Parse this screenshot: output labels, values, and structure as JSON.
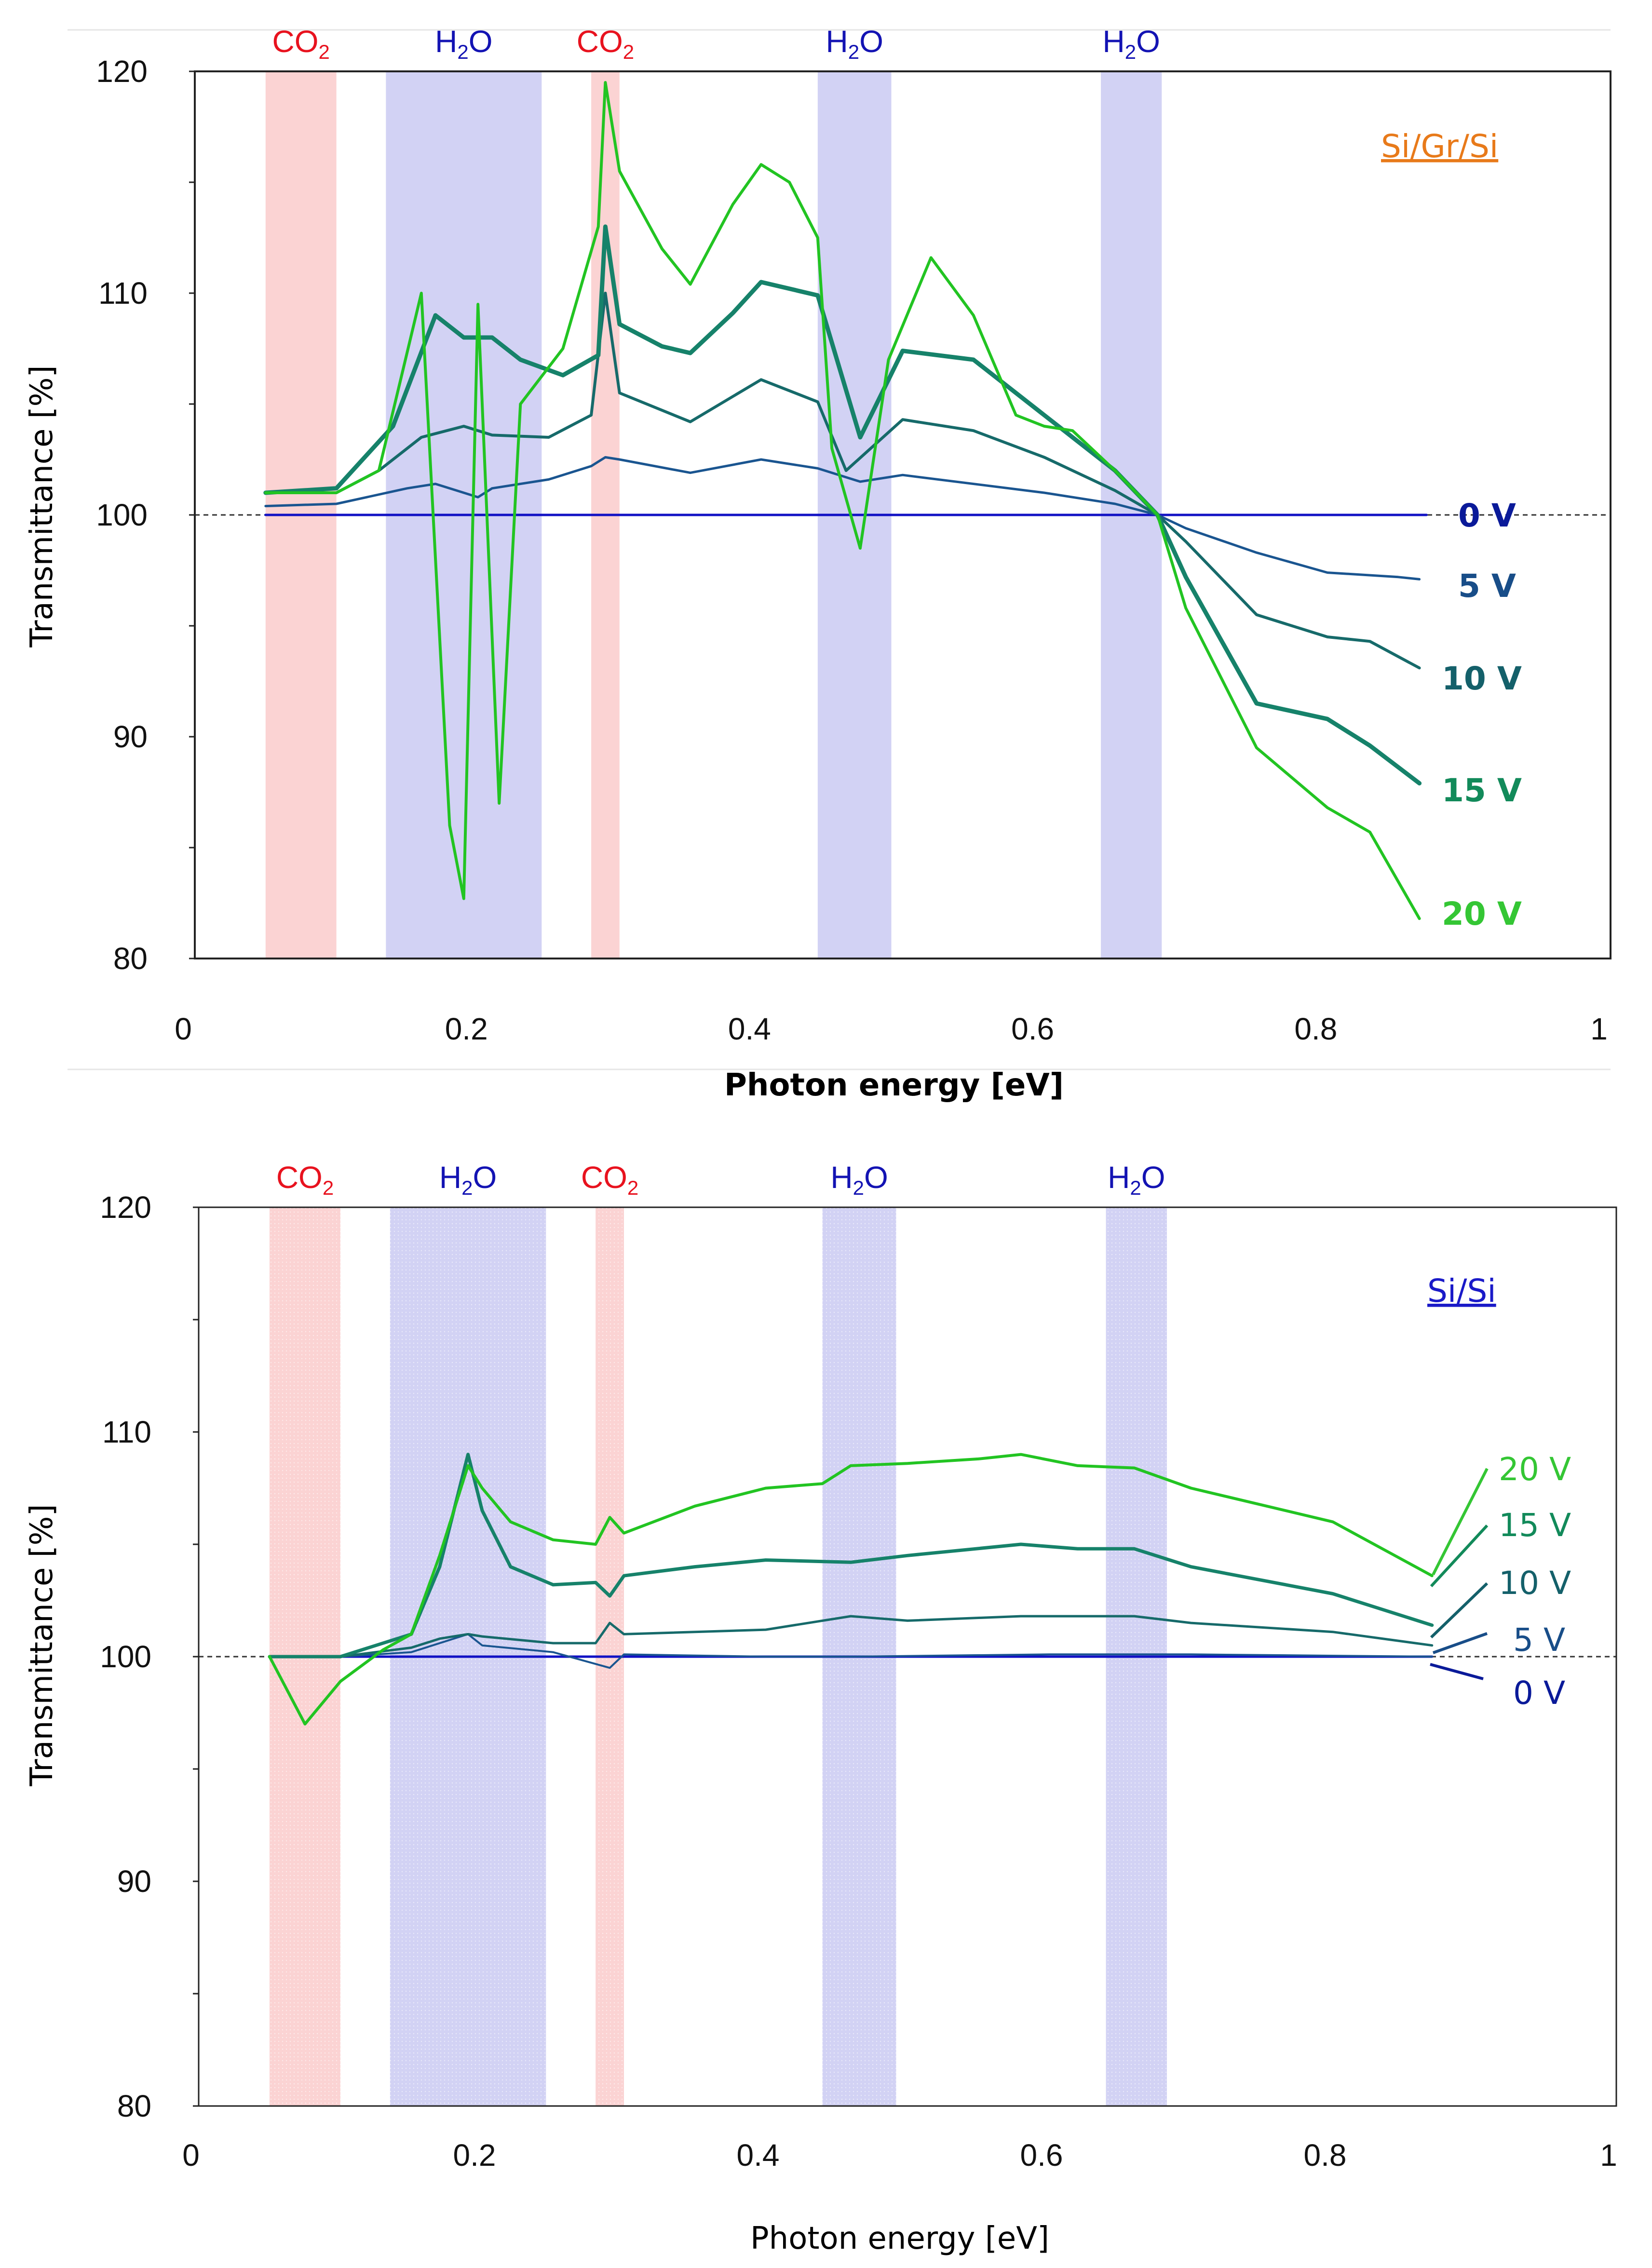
{
  "colors": {
    "co2_band": "#fbd3d3",
    "h2o_band": "#d2d2f4",
    "co2_text": "#e8121e",
    "h2o_text": "#1313b3",
    "v0": "#1111c4",
    "v5": "#1a5590",
    "v10": "#166a6a",
    "v15": "#16826a",
    "v20": "#22c422",
    "label_v0": "#0a1a99",
    "label_v5": "#184d88",
    "label_v10": "#14606a",
    "label_v15": "#128a5a",
    "label_v20": "#34c634",
    "si_gr_si": "#e87a1a",
    "si_si": "#1a1ac8"
  },
  "chart_data": [
    {
      "type": "line",
      "sample_label": "Si/Gr/Si",
      "xlabel": "Photon energy [eV]",
      "ylabel": "Transmittance [%]",
      "xlim": [
        0,
        1
      ],
      "ylim": [
        80,
        120
      ],
      "x_ticks": [
        "0",
        "0.2",
        "0.4",
        "0.6",
        "0.8",
        "1"
      ],
      "y_ticks": [
        "80",
        "90",
        "100",
        "110",
        "120"
      ],
      "reference_line": 100,
      "bands": [
        {
          "label": "CO",
          "sub": "2",
          "type": "co2",
          "range": [
            0.05,
            0.1
          ]
        },
        {
          "label": "H",
          "sub": "2",
          "tail": "O",
          "type": "h2o",
          "range": [
            0.135,
            0.245
          ]
        },
        {
          "label": "CO",
          "sub": "2",
          "type": "co2",
          "range": [
            0.28,
            0.3
          ]
        },
        {
          "label": "H",
          "sub": "2",
          "tail": "O",
          "type": "h2o",
          "range": [
            0.44,
            0.492
          ]
        },
        {
          "label": "H",
          "sub": "2",
          "tail": "O",
          "type": "h2o",
          "range": [
            0.64,
            0.683
          ]
        }
      ],
      "series": [
        {
          "name": "0 V",
          "key": "v0",
          "width": 5,
          "points": [
            [
              0.05,
              100
            ],
            [
              0.87,
              100
            ]
          ]
        },
        {
          "name": "5 V",
          "key": "v5",
          "width": 5,
          "points": [
            [
              0.05,
              100.4
            ],
            [
              0.1,
              100.5
            ],
            [
              0.15,
              101.2
            ],
            [
              0.17,
              101.4
            ],
            [
              0.19,
              101.0
            ],
            [
              0.2,
              100.8
            ],
            [
              0.21,
              101.2
            ],
            [
              0.25,
              101.6
            ],
            [
              0.28,
              102.2
            ],
            [
              0.29,
              102.6
            ],
            [
              0.3,
              102.5
            ],
            [
              0.35,
              101.9
            ],
            [
              0.4,
              102.5
            ],
            [
              0.44,
              102.1
            ],
            [
              0.47,
              101.5
            ],
            [
              0.5,
              101.8
            ],
            [
              0.6,
              101.0
            ],
            [
              0.65,
              100.5
            ],
            [
              0.68,
              100.0
            ],
            [
              0.7,
              99.4
            ],
            [
              0.75,
              98.3
            ],
            [
              0.8,
              97.4
            ],
            [
              0.85,
              97.2
            ],
            [
              0.865,
              97.1
            ]
          ]
        },
        {
          "name": "10 V",
          "key": "v10",
          "width": 6,
          "points": [
            [
              0.05,
              101.0
            ],
            [
              0.1,
              101.0
            ],
            [
              0.13,
              102.0
            ],
            [
              0.16,
              103.5
            ],
            [
              0.19,
              104.0
            ],
            [
              0.21,
              103.6
            ],
            [
              0.25,
              103.5
            ],
            [
              0.28,
              104.5
            ],
            [
              0.29,
              110.0
            ],
            [
              0.3,
              105.5
            ],
            [
              0.35,
              104.2
            ],
            [
              0.4,
              106.1
            ],
            [
              0.44,
              105.1
            ],
            [
              0.46,
              102.0
            ],
            [
              0.5,
              104.3
            ],
            [
              0.55,
              103.8
            ],
            [
              0.6,
              102.6
            ],
            [
              0.65,
              101.1
            ],
            [
              0.68,
              100.0
            ],
            [
              0.7,
              98.8
            ],
            [
              0.75,
              95.5
            ],
            [
              0.8,
              94.5
            ],
            [
              0.83,
              94.3
            ],
            [
              0.865,
              93.1
            ]
          ]
        },
        {
          "name": "15 V",
          "key": "v15",
          "width": 9,
          "points": [
            [
              0.05,
              101.0
            ],
            [
              0.1,
              101.2
            ],
            [
              0.14,
              104.0
            ],
            [
              0.17,
              109.0
            ],
            [
              0.19,
              108.0
            ],
            [
              0.21,
              108.0
            ],
            [
              0.23,
              107.0
            ],
            [
              0.26,
              106.3
            ],
            [
              0.285,
              107.2
            ],
            [
              0.29,
              113.0
            ],
            [
              0.3,
              108.6
            ],
            [
              0.33,
              107.6
            ],
            [
              0.35,
              107.3
            ],
            [
              0.38,
              109.1
            ],
            [
              0.4,
              110.5
            ],
            [
              0.44,
              109.9
            ],
            [
              0.47,
              103.5
            ],
            [
              0.5,
              107.4
            ],
            [
              0.55,
              107.0
            ],
            [
              0.6,
              104.5
            ],
            [
              0.65,
              102.0
            ],
            [
              0.68,
              100.0
            ],
            [
              0.7,
              97.2
            ],
            [
              0.75,
              91.5
            ],
            [
              0.8,
              90.8
            ],
            [
              0.83,
              89.6
            ],
            [
              0.865,
              87.9
            ]
          ]
        },
        {
          "name": "20 V",
          "key": "v20",
          "width": 6,
          "points": [
            [
              0.05,
              101.0
            ],
            [
              0.1,
              101.0
            ],
            [
              0.13,
              102.0
            ],
            [
              0.16,
              110.0
            ],
            [
              0.18,
              86.0
            ],
            [
              0.19,
              82.7
            ],
            [
              0.2,
              109.5
            ],
            [
              0.215,
              87.0
            ],
            [
              0.23,
              105.0
            ],
            [
              0.26,
              107.5
            ],
            [
              0.285,
              113.0
            ],
            [
              0.29,
              119.5
            ],
            [
              0.3,
              115.5
            ],
            [
              0.33,
              112.0
            ],
            [
              0.35,
              110.4
            ],
            [
              0.38,
              114.0
            ],
            [
              0.4,
              115.8
            ],
            [
              0.42,
              115.0
            ],
            [
              0.44,
              112.5
            ],
            [
              0.45,
              103.0
            ],
            [
              0.47,
              98.5
            ],
            [
              0.49,
              107.0
            ],
            [
              0.52,
              111.6
            ],
            [
              0.55,
              109.0
            ],
            [
              0.58,
              104.5
            ],
            [
              0.6,
              104.0
            ],
            [
              0.62,
              103.8
            ],
            [
              0.65,
              102.0
            ],
            [
              0.68,
              100.0
            ],
            [
              0.7,
              95.8
            ],
            [
              0.75,
              89.5
            ],
            [
              0.8,
              86.8
            ],
            [
              0.83,
              85.7
            ],
            [
              0.865,
              81.8
            ]
          ]
        }
      ]
    },
    {
      "type": "line",
      "sample_label": "Si/Si",
      "xlabel": "Photon energy [eV]",
      "ylabel": "Transmittance [%]",
      "xlim": [
        0,
        1
      ],
      "ylim": [
        80,
        120
      ],
      "x_ticks": [
        "0",
        "0.2",
        "0.4",
        "0.6",
        "0.8",
        "1"
      ],
      "y_ticks": [
        "80",
        "90",
        "100",
        "110",
        "120"
      ],
      "reference_line": 100,
      "bands": [
        {
          "label": "CO",
          "sub": "2",
          "type": "co2",
          "range": [
            0.05,
            0.1
          ]
        },
        {
          "label": "H",
          "sub": "2",
          "tail": "O",
          "type": "h2o",
          "range": [
            0.135,
            0.245
          ]
        },
        {
          "label": "CO",
          "sub": "2",
          "type": "co2",
          "range": [
            0.28,
            0.3
          ]
        },
        {
          "label": "H",
          "sub": "2",
          "tail": "O",
          "type": "h2o",
          "range": [
            0.44,
            0.492
          ]
        },
        {
          "label": "H",
          "sub": "2",
          "tail": "O",
          "type": "h2o",
          "range": [
            0.64,
            0.683
          ]
        }
      ],
      "series": [
        {
          "name": "0 V",
          "key": "v0",
          "width": 5,
          "points": [
            [
              0.05,
              100
            ],
            [
              0.2,
              100
            ],
            [
              0.87,
              100
            ]
          ]
        },
        {
          "name": "5 V",
          "key": "v5",
          "width": 4,
          "points": [
            [
              0.05,
              100.0
            ],
            [
              0.1,
              100.0
            ],
            [
              0.15,
              100.2
            ],
            [
              0.19,
              101.0
            ],
            [
              0.2,
              100.5
            ],
            [
              0.25,
              100.2
            ],
            [
              0.29,
              99.5
            ],
            [
              0.3,
              100.1
            ],
            [
              0.4,
              100.0
            ],
            [
              0.46,
              100.0
            ],
            [
              0.6,
              100.1
            ],
            [
              0.7,
              100.1
            ],
            [
              0.87,
              100.0
            ]
          ]
        },
        {
          "name": "10 V",
          "key": "v10",
          "width": 5,
          "points": [
            [
              0.05,
              100.0
            ],
            [
              0.1,
              100.0
            ],
            [
              0.15,
              100.4
            ],
            [
              0.17,
              100.8
            ],
            [
              0.19,
              101.0
            ],
            [
              0.2,
              100.9
            ],
            [
              0.25,
              100.6
            ],
            [
              0.28,
              100.6
            ],
            [
              0.29,
              101.5
            ],
            [
              0.3,
              101.0
            ],
            [
              0.4,
              101.2
            ],
            [
              0.46,
              101.8
            ],
            [
              0.5,
              101.6
            ],
            [
              0.58,
              101.8
            ],
            [
              0.66,
              101.8
            ],
            [
              0.7,
              101.5
            ],
            [
              0.8,
              101.1
            ],
            [
              0.87,
              100.5
            ]
          ]
        },
        {
          "name": "15 V",
          "key": "v15",
          "width": 7,
          "points": [
            [
              0.05,
              100.0
            ],
            [
              0.1,
              100.0
            ],
            [
              0.15,
              101.0
            ],
            [
              0.17,
              104.0
            ],
            [
              0.19,
              109.0
            ],
            [
              0.2,
              106.5
            ],
            [
              0.22,
              104.0
            ],
            [
              0.25,
              103.2
            ],
            [
              0.28,
              103.3
            ],
            [
              0.29,
              102.7
            ],
            [
              0.3,
              103.6
            ],
            [
              0.35,
              104.0
            ],
            [
              0.4,
              104.3
            ],
            [
              0.46,
              104.2
            ],
            [
              0.5,
              104.5
            ],
            [
              0.58,
              105.0
            ],
            [
              0.62,
              104.8
            ],
            [
              0.66,
              104.8
            ],
            [
              0.7,
              104.0
            ],
            [
              0.8,
              102.8
            ],
            [
              0.87,
              101.4
            ]
          ]
        },
        {
          "name": "20 V",
          "key": "v20",
          "width": 6,
          "points": [
            [
              0.05,
              100.0
            ],
            [
              0.075,
              97.0
            ],
            [
              0.1,
              98.9
            ],
            [
              0.13,
              100.3
            ],
            [
              0.15,
              101.0
            ],
            [
              0.17,
              104.5
            ],
            [
              0.19,
              108.5
            ],
            [
              0.2,
              107.5
            ],
            [
              0.22,
              106.0
            ],
            [
              0.25,
              105.2
            ],
            [
              0.28,
              105.0
            ],
            [
              0.29,
              106.2
            ],
            [
              0.3,
              105.5
            ],
            [
              0.35,
              106.7
            ],
            [
              0.4,
              107.5
            ],
            [
              0.44,
              107.7
            ],
            [
              0.46,
              108.5
            ],
            [
              0.5,
              108.6
            ],
            [
              0.55,
              108.8
            ],
            [
              0.58,
              109.0
            ],
            [
              0.62,
              108.5
            ],
            [
              0.66,
              108.4
            ],
            [
              0.7,
              107.5
            ],
            [
              0.8,
              106.0
            ],
            [
              0.87,
              103.6
            ]
          ]
        }
      ]
    }
  ],
  "panels": {
    "top": {
      "title": "Si/Gr/Si",
      "xlabel": "Photon energy [eV]",
      "ylabel": "Transmittance [%]",
      "x_ticks": [
        "0",
        "0.2",
        "0.4",
        "0.6",
        "0.8",
        "1"
      ],
      "y_ticks": [
        "80",
        "90",
        "100",
        "110",
        "120"
      ],
      "series_labels": [
        "0 V",
        "5 V",
        "10 V",
        "15 V",
        "20 V"
      ],
      "bands": [
        {
          "main": "CO",
          "sub": "2",
          "tail": ""
        },
        {
          "main": "H",
          "sub": "2",
          "tail": "O"
        },
        {
          "main": "CO",
          "sub": "2",
          "tail": ""
        },
        {
          "main": "H",
          "sub": "2",
          "tail": "O"
        },
        {
          "main": "H",
          "sub": "2",
          "tail": "O"
        }
      ]
    },
    "bottom": {
      "title": "Si/Si",
      "xlabel": "Photon energy [eV]",
      "ylabel": "Transmittance [%]",
      "x_ticks": [
        "0",
        "0.2",
        "0.4",
        "0.6",
        "0.8",
        "1"
      ],
      "y_ticks": [
        "80",
        "90",
        "100",
        "110",
        "120"
      ],
      "series_labels": [
        "20 V",
        "15 V",
        "10 V",
        "5 V",
        "0 V"
      ],
      "bands": [
        {
          "main": "CO",
          "sub": "2",
          "tail": ""
        },
        {
          "main": "H",
          "sub": "2",
          "tail": "O"
        },
        {
          "main": "CO",
          "sub": "2",
          "tail": ""
        },
        {
          "main": "H",
          "sub": "2",
          "tail": "O"
        },
        {
          "main": "H",
          "sub": "2",
          "tail": "O"
        }
      ]
    }
  }
}
